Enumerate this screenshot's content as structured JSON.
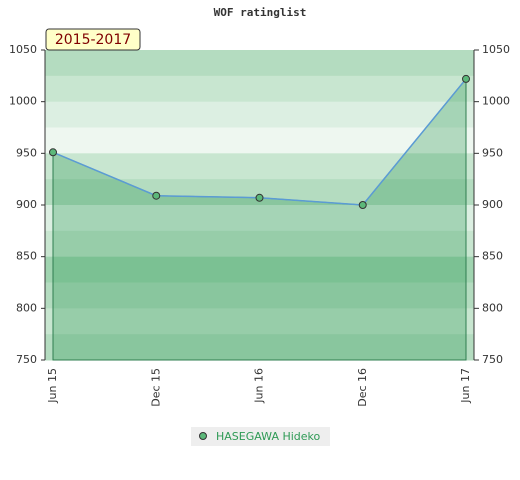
{
  "chart_data": {
    "type": "line",
    "title": "WOF ratinglist",
    "annotation": "2015-2017",
    "categories": [
      "Jun 15",
      "Dec 15",
      "Jun 16",
      "Dec 16",
      "Jun 17"
    ],
    "series": [
      {
        "name": "HASEGAWA Hideko",
        "color": "#5cb87a",
        "values": [
          951,
          909,
          907,
          900,
          1022
        ]
      }
    ],
    "ylim": [
      750,
      1050
    ],
    "yticks": [
      750,
      800,
      850,
      900,
      950,
      1000,
      1050
    ],
    "y2lim": [
      750,
      1050
    ],
    "y2ticks": [
      750,
      800,
      850,
      900,
      950,
      1000,
      1050
    ]
  }
}
